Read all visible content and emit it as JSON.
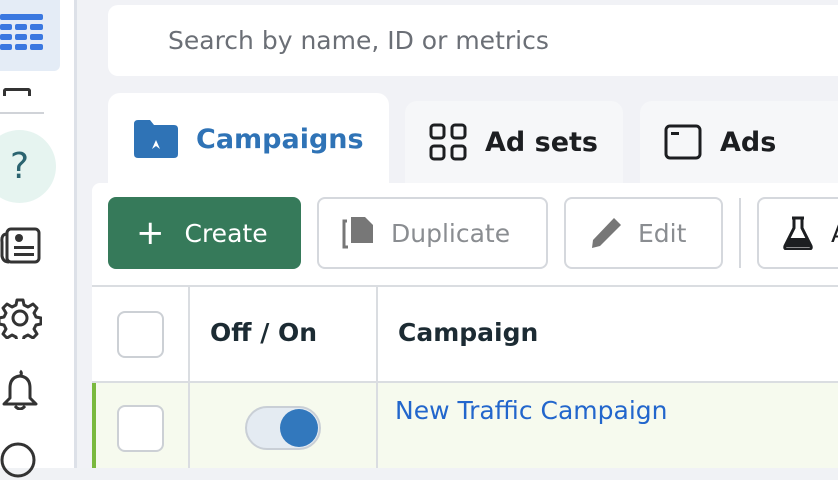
{
  "search": {
    "placeholder": "Search by name, ID or metrics"
  },
  "tabs": [
    {
      "label": "Campaigns",
      "icon": "campaign-folder-icon"
    },
    {
      "label": "Ad sets",
      "icon": "grid-icon"
    },
    {
      "label": "Ads",
      "icon": "ad-window-icon"
    }
  ],
  "toolbar": {
    "create": "Create",
    "duplicate": "Duplicate",
    "edit": "Edit",
    "test": "A"
  },
  "table": {
    "headers": [
      "Off / On",
      "Campaign"
    ],
    "rows": [
      {
        "name": "New Traffic Campaign",
        "enabled": true
      }
    ]
  },
  "colors": {
    "accent": "#2f73b6",
    "create": "#367a5a",
    "link": "#2266cc",
    "row_highlight": "#7ab93e"
  }
}
